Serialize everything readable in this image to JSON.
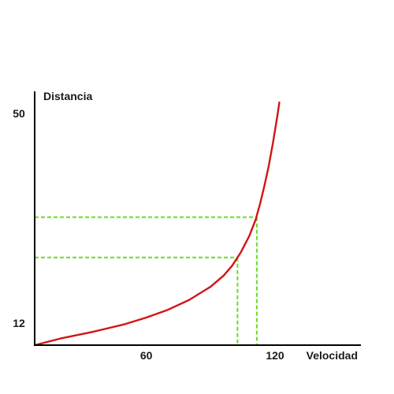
{
  "chart_data": {
    "type": "line",
    "title": "",
    "xlabel": "Velocidad",
    "ylabel": "Distancia",
    "xticks": [
      {
        "value": 60,
        "label": "60"
      },
      {
        "value": 120,
        "label": "120"
      }
    ],
    "yticks": [
      {
        "value": 12,
        "label": "12"
      },
      {
        "value": 50,
        "label": "50"
      }
    ],
    "xlim": [
      8,
      160
    ],
    "ylim": [
      8,
      54
    ],
    "grid": false,
    "series": [
      {
        "color": "#d21414",
        "points": [
          [
            8,
            8
          ],
          [
            20,
            9.2
          ],
          [
            35,
            10.4
          ],
          [
            50,
            11.8
          ],
          [
            60,
            13.0
          ],
          [
            70,
            14.4
          ],
          [
            80,
            16.2
          ],
          [
            90,
            18.6
          ],
          [
            96,
            20.6
          ],
          [
            100,
            22.4
          ],
          [
            104,
            24.8
          ],
          [
            108,
            27.8
          ],
          [
            111,
            30.8
          ],
          [
            113,
            33.6
          ],
          [
            115,
            36.8
          ],
          [
            117,
            40.4
          ],
          [
            119,
            44.6
          ],
          [
            121,
            49.4
          ],
          [
            122,
            52.0
          ]
        ]
      }
    ],
    "reference_lines": {
      "color": "#66dd22",
      "points": [
        {
          "x": 111.5,
          "y": 31.2
        },
        {
          "x": 102.5,
          "y": 23.9
        }
      ]
    }
  }
}
